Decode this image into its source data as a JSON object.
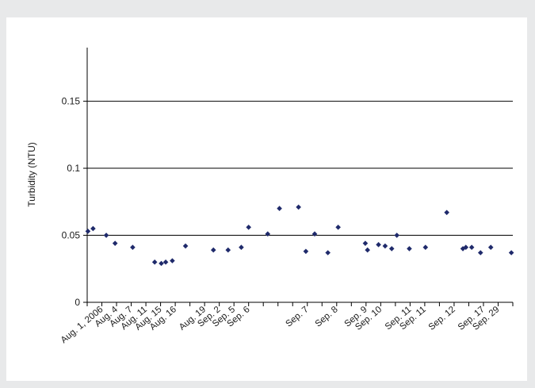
{
  "chart_data": {
    "type": "scatter",
    "title": "",
    "xlabel": "",
    "ylabel": "Turbidity (NTU)",
    "ylim": [
      0,
      0.19
    ],
    "yticks": [
      {
        "value": 0,
        "label": "0"
      },
      {
        "value": 0.05,
        "label": "0.05"
      },
      {
        "value": 0.1,
        "label": "0.1"
      },
      {
        "value": 0.15,
        "label": "0.15"
      }
    ],
    "grid": "horizontal",
    "legend": "none",
    "marker_color": "#1f2a6b",
    "x_categories": [
      {
        "index": 1,
        "label": "Aug. 1, 2006"
      },
      {
        "index": 2,
        "label": "Aug. 4"
      },
      {
        "index": 3,
        "label": "Aug. 7"
      },
      {
        "index": 4,
        "label": "Aug. 11"
      },
      {
        "index": 5,
        "label": "Aug. 15"
      },
      {
        "index": 6,
        "label": "Aug. 16"
      },
      {
        "index": 8,
        "label": "Aug. 19"
      },
      {
        "index": 9,
        "label": "Sep. 2"
      },
      {
        "index": 10,
        "label": "Sep. 5"
      },
      {
        "index": 11,
        "label": "Sep. 6"
      },
      {
        "index": 15,
        "label": "Sep. 7"
      },
      {
        "index": 17,
        "label": "Sep. 8"
      },
      {
        "index": 19,
        "label": "Sep. 9"
      },
      {
        "index": 20,
        "label": "Sep. 10"
      },
      {
        "index": 22,
        "label": "Sep. 11"
      },
      {
        "index": 23,
        "label": "Sep. 11"
      },
      {
        "index": 25,
        "label": "Sep. 12"
      },
      {
        "index": 27,
        "label": "Sep. 17"
      },
      {
        "index": 28,
        "label": "Sep. 29"
      }
    ],
    "points": [
      {
        "x": 0.05,
        "y": 0.053
      },
      {
        "x": 0.4,
        "y": 0.055
      },
      {
        "x": 1.3,
        "y": 0.05
      },
      {
        "x": 1.9,
        "y": 0.044
      },
      {
        "x": 3.1,
        "y": 0.041
      },
      {
        "x": 4.6,
        "y": 0.03
      },
      {
        "x": 5.05,
        "y": 0.029
      },
      {
        "x": 5.35,
        "y": 0.03
      },
      {
        "x": 5.8,
        "y": 0.031
      },
      {
        "x": 6.7,
        "y": 0.042
      },
      {
        "x": 8.6,
        "y": 0.039
      },
      {
        "x": 9.6,
        "y": 0.039
      },
      {
        "x": 10.5,
        "y": 0.041
      },
      {
        "x": 11.0,
        "y": 0.056
      },
      {
        "x": 12.3,
        "y": 0.051
      },
      {
        "x": 13.1,
        "y": 0.07
      },
      {
        "x": 14.4,
        "y": 0.071
      },
      {
        "x": 14.9,
        "y": 0.038
      },
      {
        "x": 15.5,
        "y": 0.051
      },
      {
        "x": 16.4,
        "y": 0.037
      },
      {
        "x": 17.1,
        "y": 0.056
      },
      {
        "x": 18.95,
        "y": 0.044
      },
      {
        "x": 19.1,
        "y": 0.039
      },
      {
        "x": 19.85,
        "y": 0.043
      },
      {
        "x": 20.3,
        "y": 0.042
      },
      {
        "x": 20.75,
        "y": 0.04
      },
      {
        "x": 21.1,
        "y": 0.05
      },
      {
        "x": 21.95,
        "y": 0.04
      },
      {
        "x": 23.05,
        "y": 0.041
      },
      {
        "x": 24.5,
        "y": 0.067
      },
      {
        "x": 25.6,
        "y": 0.04
      },
      {
        "x": 25.8,
        "y": 0.041
      },
      {
        "x": 26.2,
        "y": 0.041
      },
      {
        "x": 26.8,
        "y": 0.037
      },
      {
        "x": 27.5,
        "y": 0.041
      },
      {
        "x": 28.9,
        "y": 0.037
      }
    ]
  }
}
